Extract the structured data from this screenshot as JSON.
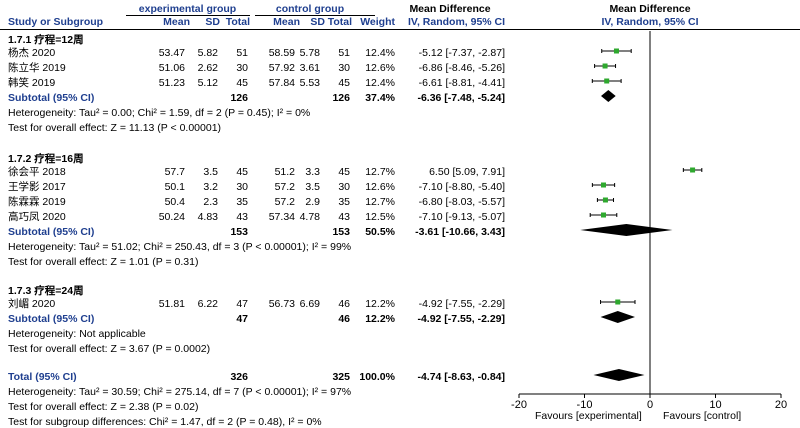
{
  "header": {
    "exp_group": "experimental group",
    "ctrl_group": "control group",
    "md_left": "Mean Difference",
    "md_right": "Mean Difference",
    "study": "Study or Subgroup",
    "mean": "Mean",
    "sd": "SD",
    "total": "Total",
    "weight": "Weight",
    "method_left": "IV, Random, 95% CI",
    "method_right": "IV, Random, 95% CI"
  },
  "subgroups": [
    {
      "title": "1.7.1 疗程=12周",
      "studies": [
        {
          "name": "杨杰 2020",
          "e_mean": "53.47",
          "e_sd": "5.82",
          "e_total": "51",
          "c_mean": "58.59",
          "c_sd": "5.78",
          "c_total": "51",
          "weight": "12.4%",
          "ci": "-5.12 [-7.37, -2.87]"
        },
        {
          "name": "陈立华 2019",
          "e_mean": "51.06",
          "e_sd": "2.62",
          "e_total": "30",
          "c_mean": "57.92",
          "c_sd": "3.61",
          "c_total": "30",
          "weight": "12.6%",
          "ci": "-6.86 [-8.46, -5.26]"
        },
        {
          "name": "韩笑 2019",
          "e_mean": "51.23",
          "e_sd": "5.12",
          "e_total": "45",
          "c_mean": "57.84",
          "c_sd": "5.53",
          "c_total": "45",
          "weight": "12.4%",
          "ci": "-6.61 [-8.81, -4.41]"
        }
      ],
      "subtotal": {
        "label": "Subtotal (95% CI)",
        "e_total": "126",
        "c_total": "126",
        "weight": "37.4%",
        "ci": "-6.36 [-7.48, -5.24]"
      },
      "heterogeneity": "Heterogeneity: Tau² = 0.00; Chi² = 1.59, df = 2 (P = 0.45); I² = 0%",
      "overall": "Test for overall effect: Z = 11.13 (P < 0.00001)"
    },
    {
      "title": "1.7.2 疗程=16周",
      "studies": [
        {
          "name": "徐会平 2018",
          "e_mean": "57.7",
          "e_sd": "3.5",
          "e_total": "45",
          "c_mean": "51.2",
          "c_sd": "3.3",
          "c_total": "45",
          "weight": "12.7%",
          "ci": "6.50 [5.09, 7.91]"
        },
        {
          "name": "王学影 2017",
          "e_mean": "50.1",
          "e_sd": "3.2",
          "e_total": "30",
          "c_mean": "57.2",
          "c_sd": "3.5",
          "c_total": "30",
          "weight": "12.6%",
          "ci": "-7.10 [-8.80, -5.40]"
        },
        {
          "name": "陈霖霖 2019",
          "e_mean": "50.4",
          "e_sd": "2.3",
          "e_total": "35",
          "c_mean": "57.2",
          "c_sd": "2.9",
          "c_total": "35",
          "weight": "12.7%",
          "ci": "-6.80 [-8.03, -5.57]"
        },
        {
          "name": "高巧凤 2020",
          "e_mean": "50.24",
          "e_sd": "4.83",
          "e_total": "43",
          "c_mean": "57.34",
          "c_sd": "4.78",
          "c_total": "43",
          "weight": "12.5%",
          "ci": "-7.10 [-9.13, -5.07]"
        }
      ],
      "subtotal": {
        "label": "Subtotal (95% CI)",
        "e_total": "153",
        "c_total": "153",
        "weight": "50.5%",
        "ci": "-3.61 [-10.66, 3.43]"
      },
      "heterogeneity": "Heterogeneity: Tau² = 51.02; Chi² = 250.43, df = 3 (P < 0.00001); I² = 99%",
      "overall": "Test for overall effect: Z = 1.01 (P = 0.31)"
    },
    {
      "title": "1.7.3 疗程=24周",
      "studies": [
        {
          "name": "刘嵋 2020",
          "e_mean": "51.81",
          "e_sd": "6.22",
          "e_total": "47",
          "c_mean": "56.73",
          "c_sd": "6.69",
          "c_total": "46",
          "weight": "12.2%",
          "ci": "-4.92 [-7.55, -2.29]"
        }
      ],
      "subtotal": {
        "label": "Subtotal (95% CI)",
        "e_total": "47",
        "c_total": "46",
        "weight": "12.2%",
        "ci": "-4.92 [-7.55, -2.29]"
      },
      "heterogeneity": "Heterogeneity: Not applicable",
      "overall": "Test for overall effect: Z = 3.67 (P = 0.0002)"
    }
  ],
  "total": {
    "label": "Total (95% CI)",
    "e_total": "326",
    "c_total": "325",
    "weight": "100.0%",
    "ci": "-4.74 [-8.63, -0.84]"
  },
  "footer": {
    "heterogeneity": "Heterogeneity: Tau² = 30.59; Chi² = 275.14, df = 7 (P < 0.00001); I² = 97%",
    "overall": "Test for overall effect: Z = 2.38 (P = 0.02)",
    "subgroup_diff": "Test for subgroup differences: Chi² = 1.47, df = 2 (P = 0.48), I² = 0%"
  },
  "axis": {
    "favours_left": "Favours [experimental]",
    "favours_right": "Favours [control]"
  },
  "colors": {
    "marker": "#2ea82e",
    "header_text": "#1f3f8f"
  },
  "chart_data": {
    "type": "scatter",
    "subtype": "forest_plot",
    "xlim": [
      -20,
      20
    ],
    "xticks": [
      -20,
      -10,
      0,
      10,
      20
    ],
    "studies": [
      {
        "name": "杨杰 2020",
        "md": -5.12,
        "lo": -7.37,
        "hi": -2.87
      },
      {
        "name": "陈立华 2019",
        "md": -6.86,
        "lo": -8.46,
        "hi": -5.26
      },
      {
        "name": "韩笑 2019",
        "md": -6.61,
        "lo": -8.81,
        "hi": -4.41
      },
      {
        "name": "徐会平 2018",
        "md": 6.5,
        "lo": 5.09,
        "hi": 7.91
      },
      {
        "name": "王学影 2017",
        "md": -7.1,
        "lo": -8.8,
        "hi": -5.4
      },
      {
        "name": "陈霖霖 2019",
        "md": -6.8,
        "lo": -8.03,
        "hi": -5.57
      },
      {
        "name": "高巧凤 2020",
        "md": -7.1,
        "lo": -9.13,
        "hi": -5.07
      },
      {
        "name": "刘嵋 2020",
        "md": -4.92,
        "lo": -7.55,
        "hi": -2.29
      }
    ],
    "diamonds": [
      {
        "name": "Subtotal 1.7.1",
        "md": -6.36,
        "lo": -7.48,
        "hi": -5.24
      },
      {
        "name": "Subtotal 1.7.2",
        "md": -3.61,
        "lo": -10.66,
        "hi": 3.43
      },
      {
        "name": "Subtotal 1.7.3",
        "md": -4.92,
        "lo": -7.55,
        "hi": -2.29
      },
      {
        "name": "Total",
        "md": -4.74,
        "lo": -8.63,
        "hi": -0.84
      }
    ]
  }
}
